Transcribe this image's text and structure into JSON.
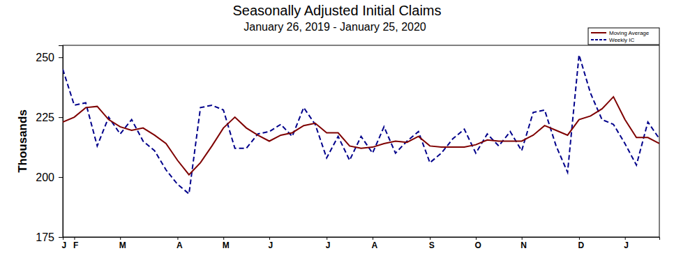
{
  "chart_data": {
    "type": "line",
    "title": "Seasonally Adjusted Initial Claims",
    "subtitle": "January 26, 2019 - January 25, 2020",
    "y_label": "Thousands",
    "categories": [
      "J",
      "F",
      null,
      null,
      null,
      "M",
      null,
      null,
      null,
      null,
      "A",
      null,
      null,
      null,
      "M",
      null,
      null,
      null,
      "J",
      null,
      null,
      null,
      null,
      "J",
      null,
      null,
      null,
      "A",
      null,
      null,
      null,
      null,
      "S",
      null,
      null,
      null,
      "O",
      null,
      null,
      null,
      "N",
      null,
      null,
      null,
      null,
      "D",
      null,
      null,
      null,
      "J",
      null,
      null,
      null
    ],
    "ylim": [
      175,
      255
    ],
    "yticks": [
      175,
      200,
      225,
      250
    ],
    "grid": false,
    "legend": "upper right",
    "series": [
      {
        "name": "Moving Average",
        "color": "#7f0000",
        "line_style": "solid",
        "values": [
          223,
          225,
          229,
          229.5,
          224,
          221,
          219.5,
          220.5,
          217.5,
          214,
          207,
          201,
          206,
          213,
          220.5,
          225,
          220.5,
          217.5,
          215,
          217.5,
          218.5,
          221.5,
          222.5,
          218.5,
          218.5,
          213,
          212,
          212.5,
          214,
          215,
          214.5,
          217,
          213,
          212.5,
          212.5,
          212.5,
          213.5,
          215.5,
          215,
          215,
          215,
          217.5,
          221.5,
          219.5,
          217.5,
          224,
          225.5,
          228.5,
          233.5,
          224,
          216.5,
          216.5,
          214
        ]
      },
      {
        "name": "Weekly IC",
        "color": "#00008b",
        "line_style": "dashed",
        "values": [
          245,
          230,
          231,
          213,
          225,
          218,
          224,
          215,
          211,
          203,
          197,
          193,
          229,
          230,
          228,
          212,
          212,
          218,
          219,
          222,
          217,
          229,
          222,
          208,
          217,
          207,
          217,
          210,
          221,
          210,
          215,
          219,
          206,
          210,
          216,
          220,
          210,
          218,
          213,
          219,
          211,
          227,
          228,
          213,
          202,
          251,
          235,
          224,
          222,
          214,
          205,
          223,
          216
        ]
      }
    ]
  }
}
